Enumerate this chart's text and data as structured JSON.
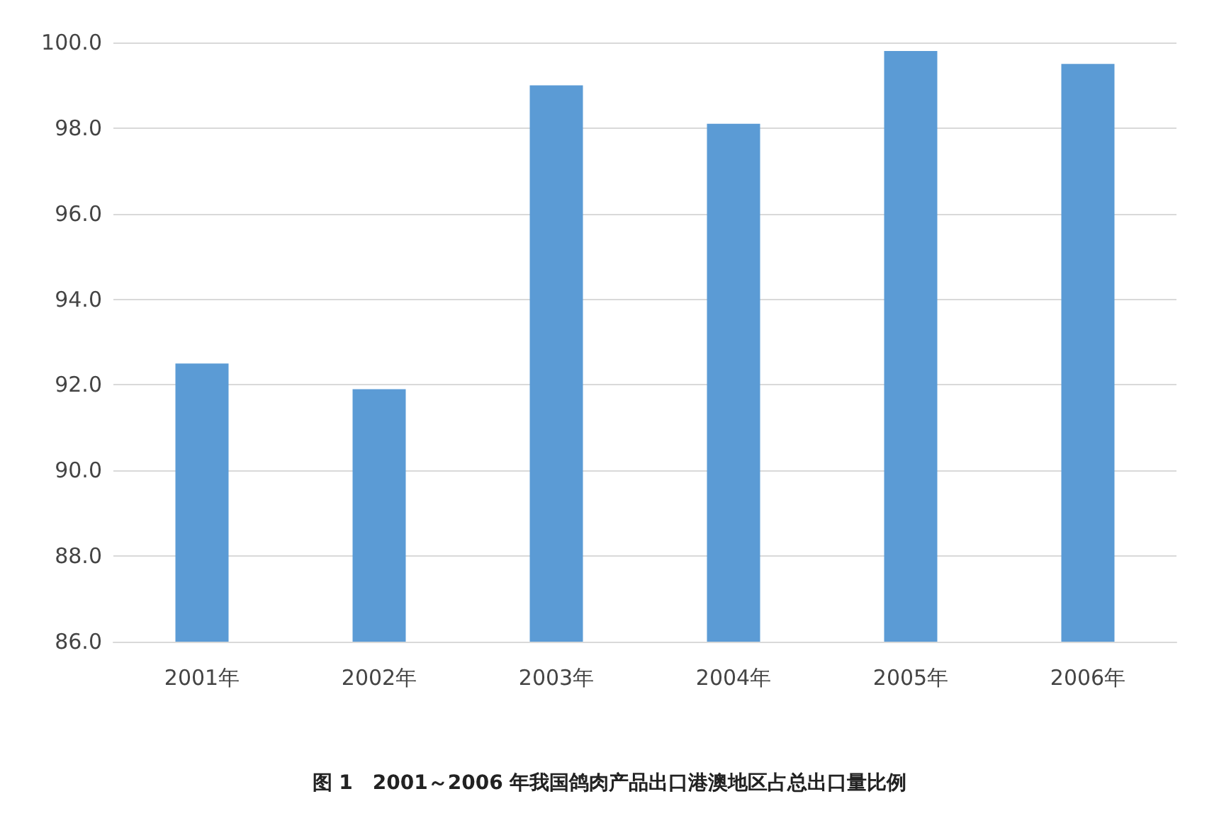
{
  "chart_data": {
    "type": "bar",
    "title": "图 1　2001～2006 年我国鸽肉产品出口港澳地区占总出口量比例",
    "categories": [
      "2001年",
      "2002年",
      "2003年",
      "2004年",
      "2005年",
      "2006年"
    ],
    "values": [
      92.5,
      91.9,
      99.0,
      98.1,
      99.8,
      99.5
    ],
    "color": "#5b9bd5",
    "ylim": [
      86,
      100
    ],
    "yticks": [
      {
        "value": 86,
        "label": "86.0"
      },
      {
        "value": 88,
        "label": "88.0"
      },
      {
        "value": 90,
        "label": "90.0"
      },
      {
        "value": 92,
        "label": "92.0"
      },
      {
        "value": 94,
        "label": "94.0"
      },
      {
        "value": 96,
        "label": "96.0"
      },
      {
        "value": 98,
        "label": "98.0"
      },
      {
        "value": 100,
        "label": "100.0"
      }
    ],
    "grid": "y"
  }
}
